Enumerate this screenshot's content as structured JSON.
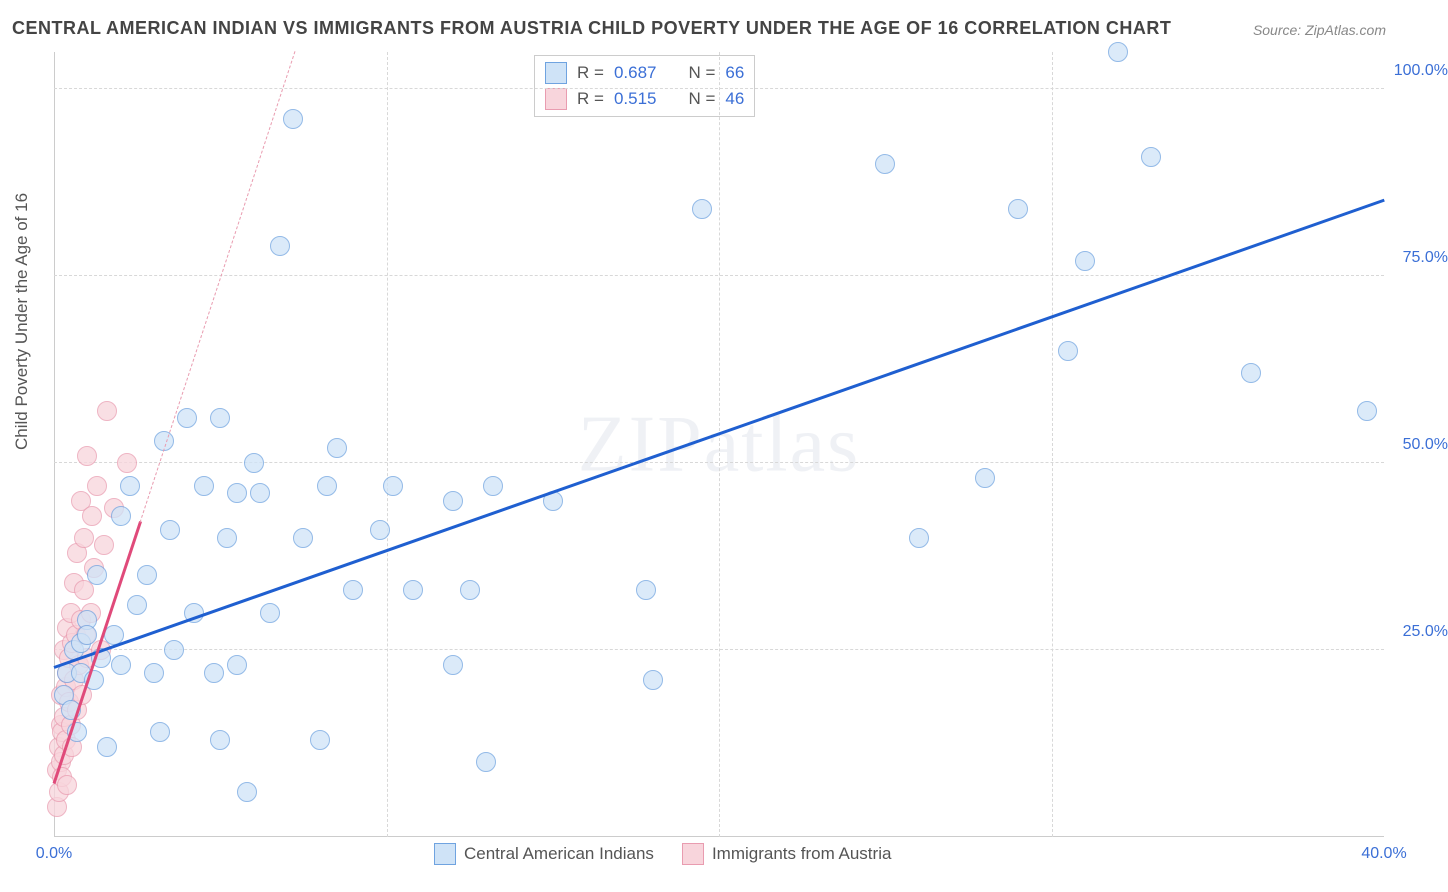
{
  "title": "CENTRAL AMERICAN INDIAN VS IMMIGRANTS FROM AUSTRIA CHILD POVERTY UNDER THE AGE OF 16 CORRELATION CHART",
  "source": "Source: ZipAtlas.com",
  "ylabel": "Child Poverty Under the Age of 16",
  "watermark": "ZIPatlas",
  "chart": {
    "type": "scatter",
    "xlim": [
      0,
      40
    ],
    "ylim": [
      0,
      105
    ],
    "xticks": [
      {
        "v": 0,
        "label": "0.0%"
      },
      {
        "v": 10,
        "label": ""
      },
      {
        "v": 20,
        "label": ""
      },
      {
        "v": 30,
        "label": ""
      },
      {
        "v": 40,
        "label": "40.0%"
      }
    ],
    "yticks": [
      {
        "v": 25,
        "label": "25.0%"
      },
      {
        "v": 50,
        "label": "50.0%"
      },
      {
        "v": 75,
        "label": "75.0%"
      },
      {
        "v": 100,
        "label": "100.0%"
      }
    ],
    "background_color": "#ffffff",
    "grid_color": "#d8d8d8",
    "tick_color_x0": "#3b6fd6",
    "tick_color_xmax": "#3b6fd6",
    "tick_color_y": "#3b6fd6",
    "series": [
      {
        "name": "Central American Indians",
        "marker_fill": "#cfe3f7",
        "marker_stroke": "#6fa3e0",
        "marker_opacity": 0.75,
        "marker_radius": 10,
        "trend": {
          "x0": 0,
          "y0": 22.5,
          "x1": 40,
          "y1": 85,
          "color": "#1f5fd0",
          "width": 3,
          "dash": false
        },
        "R": "0.687",
        "N": "66",
        "points": [
          [
            0.3,
            19
          ],
          [
            0.4,
            22
          ],
          [
            0.5,
            17
          ],
          [
            0.6,
            25
          ],
          [
            0.7,
            14
          ],
          [
            0.8,
            26
          ],
          [
            0.8,
            22
          ],
          [
            1.0,
            29
          ],
          [
            1.0,
            27
          ],
          [
            1.2,
            21
          ],
          [
            1.3,
            35
          ],
          [
            1.4,
            24
          ],
          [
            1.6,
            12
          ],
          [
            1.8,
            27
          ],
          [
            2.0,
            23
          ],
          [
            2.0,
            43
          ],
          [
            2.3,
            47
          ],
          [
            2.5,
            31
          ],
          [
            2.8,
            35
          ],
          [
            3.0,
            22
          ],
          [
            3.2,
            14
          ],
          [
            3.3,
            53
          ],
          [
            3.5,
            41
          ],
          [
            3.6,
            25
          ],
          [
            4.0,
            56
          ],
          [
            4.2,
            30
          ],
          [
            4.5,
            47
          ],
          [
            4.8,
            22
          ],
          [
            5.0,
            56
          ],
          [
            5.0,
            13
          ],
          [
            5.2,
            40
          ],
          [
            5.5,
            23
          ],
          [
            5.5,
            46
          ],
          [
            5.8,
            6
          ],
          [
            6.0,
            50
          ],
          [
            6.2,
            46
          ],
          [
            6.5,
            30
          ],
          [
            6.8,
            79
          ],
          [
            7.2,
            96
          ],
          [
            7.5,
            40
          ],
          [
            8.0,
            13
          ],
          [
            8.2,
            47
          ],
          [
            8.5,
            52
          ],
          [
            9.0,
            33
          ],
          [
            9.8,
            41
          ],
          [
            10.2,
            47
          ],
          [
            10.8,
            33
          ],
          [
            12.0,
            45
          ],
          [
            12.0,
            23
          ],
          [
            12.5,
            33
          ],
          [
            13.0,
            10
          ],
          [
            13.2,
            47
          ],
          [
            15.0,
            45
          ],
          [
            17.8,
            33
          ],
          [
            18.0,
            21
          ],
          [
            19.5,
            84
          ],
          [
            25.0,
            90
          ],
          [
            26.0,
            40
          ],
          [
            28.0,
            48
          ],
          [
            29.0,
            84
          ],
          [
            30.5,
            65
          ],
          [
            31.0,
            77
          ],
          [
            32.0,
            105
          ],
          [
            33.0,
            91
          ],
          [
            36.0,
            62
          ],
          [
            39.5,
            57
          ]
        ]
      },
      {
        "name": "Immigrants from Austria",
        "marker_fill": "#f8d5dc",
        "marker_stroke": "#e99cb0",
        "marker_opacity": 0.75,
        "marker_radius": 10,
        "trend_solid": {
          "x0": 0,
          "y0": 7,
          "x1": 2.6,
          "y1": 42,
          "color": "#e04a7a",
          "width": 3
        },
        "trend_dash": {
          "x0": 2.6,
          "y0": 42,
          "x1": 8.0,
          "y1": 115,
          "color": "#e99cb0",
          "width": 1.5
        },
        "R": "0.515",
        "N": "46",
        "points": [
          [
            0.1,
            4
          ],
          [
            0.1,
            9
          ],
          [
            0.15,
            12
          ],
          [
            0.15,
            6
          ],
          [
            0.2,
            15
          ],
          [
            0.2,
            10
          ],
          [
            0.2,
            19
          ],
          [
            0.25,
            14
          ],
          [
            0.25,
            8
          ],
          [
            0.3,
            11
          ],
          [
            0.3,
            16
          ],
          [
            0.3,
            25
          ],
          [
            0.35,
            13
          ],
          [
            0.35,
            20
          ],
          [
            0.4,
            7
          ],
          [
            0.4,
            22
          ],
          [
            0.4,
            28
          ],
          [
            0.45,
            18
          ],
          [
            0.45,
            24
          ],
          [
            0.5,
            15
          ],
          [
            0.5,
            30
          ],
          [
            0.55,
            12
          ],
          [
            0.55,
            26
          ],
          [
            0.6,
            21
          ],
          [
            0.6,
            34
          ],
          [
            0.65,
            27
          ],
          [
            0.7,
            17
          ],
          [
            0.7,
            38
          ],
          [
            0.75,
            23
          ],
          [
            0.8,
            29
          ],
          [
            0.8,
            45
          ],
          [
            0.85,
            19
          ],
          [
            0.9,
            33
          ],
          [
            0.9,
            40
          ],
          [
            0.95,
            27
          ],
          [
            1.0,
            24
          ],
          [
            1.0,
            51
          ],
          [
            1.1,
            30
          ],
          [
            1.15,
            43
          ],
          [
            1.2,
            36
          ],
          [
            1.3,
            47
          ],
          [
            1.4,
            25
          ],
          [
            1.5,
            39
          ],
          [
            1.6,
            57
          ],
          [
            1.8,
            44
          ],
          [
            2.2,
            50
          ]
        ]
      }
    ],
    "legend_top": {
      "rows": [
        {
          "swatch_fill": "#cfe3f7",
          "swatch_stroke": "#6fa3e0",
          "r_label": "R =",
          "r_val": "0.687",
          "n_label": "N =",
          "n_val": "66"
        },
        {
          "swatch_fill": "#f8d5dc",
          "swatch_stroke": "#e99cb0",
          "r_label": "R =",
          "r_val": "0.515",
          "n_label": "N =",
          "n_val": "46"
        }
      ],
      "label_color": "#555555",
      "value_color": "#3b6fd6"
    },
    "legend_bottom": [
      {
        "swatch_fill": "#cfe3f7",
        "swatch_stroke": "#6fa3e0",
        "label": "Central American Indians"
      },
      {
        "swatch_fill": "#f8d5dc",
        "swatch_stroke": "#e99cb0",
        "label": "Immigrants from Austria"
      }
    ]
  }
}
